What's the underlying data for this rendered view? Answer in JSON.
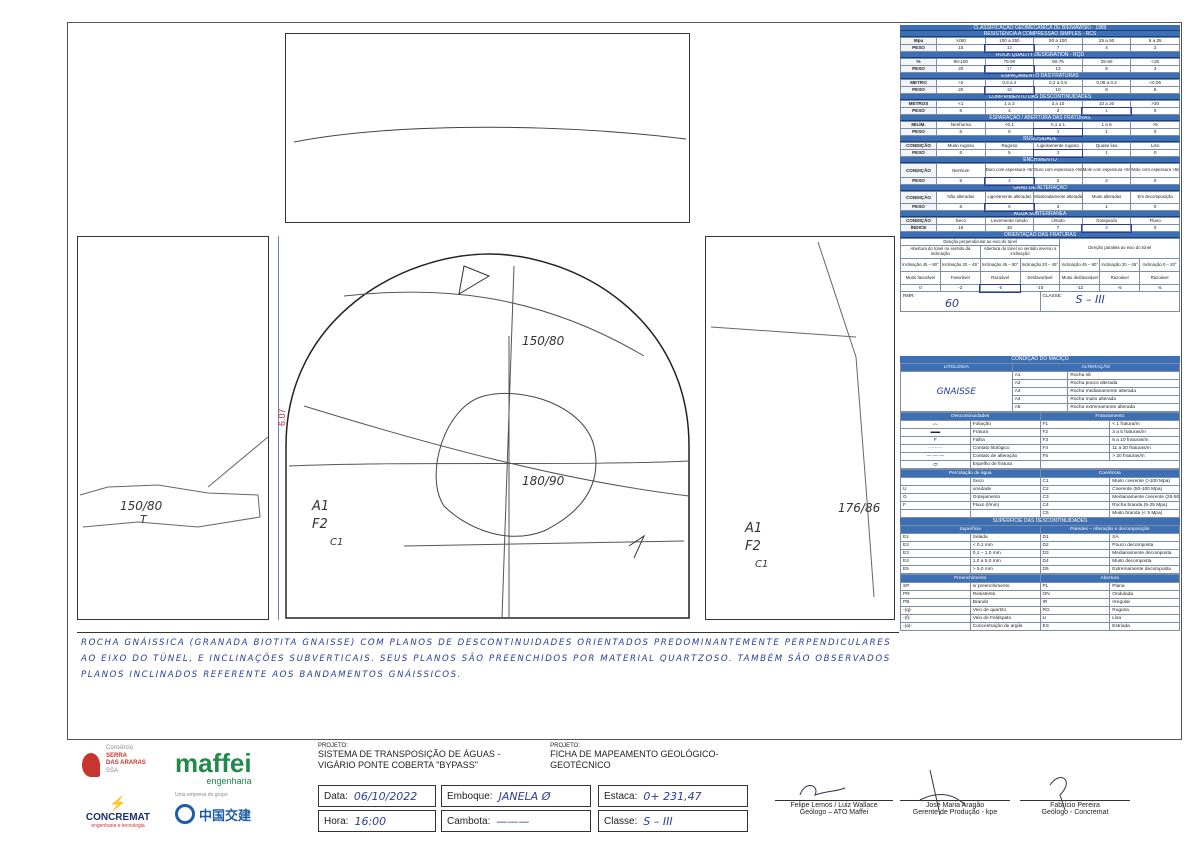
{
  "rmr": {
    "title": "CLASSIFICAÇÃO GEOMECÂNICA DE BIENIAWSKI - 1989",
    "rcs": {
      "header": "RESISTÊNCIA A COMPRESSÃO SIMPLES - RCS",
      "unit": "Mpa",
      "cols": [
        ">250",
        "100 a 250",
        "50 a 100",
        "25 a 50",
        "5 a 25"
      ],
      "peso_label": "PESO",
      "pesos": [
        "15",
        "12",
        "7",
        "4",
        "2"
      ]
    },
    "rqd": {
      "header": "ROCK QUALITY DESIGNATION - RQD",
      "unit": "%",
      "cols": [
        "90-100",
        "75-90",
        "50-75",
        "25-50",
        "<25"
      ],
      "peso_label": "PESO",
      "pesos": [
        "20",
        "17",
        "13",
        "8",
        "3"
      ]
    },
    "esp": {
      "header": "ESPAÇAMENTO DAS FRATURAS",
      "unit": "METRO",
      "cols": [
        ">2",
        "0,6 a 2",
        "0,2 a 0,6",
        "0,06 a 0,2",
        "<0,06"
      ],
      "peso_label": "PESO",
      "pesos": [
        "20",
        "15",
        "10",
        "8",
        "5"
      ]
    },
    "comp": {
      "header": "COMPRIMENTO DAS DESCONTINUIDADES",
      "unit": "METROS",
      "cols": [
        "<1",
        "1 a 3",
        "3 a 10",
        "10 a 20",
        ">20"
      ],
      "peso_label": "PESO",
      "pesos": [
        "6",
        "4",
        "2",
        "1",
        "0"
      ]
    },
    "ab": {
      "header": "ESPARAÇÃO / ABERTURA DAS FRATURAS",
      "unit": "MILÍM.",
      "cols": [
        "Nenhuma",
        "<0,1",
        "0,1 a 1",
        "1 a 5",
        ">5"
      ],
      "peso_label": "PESO",
      "pesos": [
        "6",
        "5",
        "4",
        "1",
        "0"
      ]
    },
    "rug": {
      "header": "RUGOSIDADE",
      "unit": "CONDIÇÃO",
      "cols": [
        "Muito rugoso",
        "Rugoso",
        "Ligeiramente rugoso",
        "Quase liso",
        "Liso"
      ],
      "peso_label": "PESO",
      "pesos": [
        "6",
        "5",
        "3",
        "1",
        "0"
      ]
    },
    "ench": {
      "header": "ENCHIMENTO",
      "unit": "CONDIÇÃO",
      "cols": [
        "Nenhum",
        "Duro com espessura <5mm",
        "Duro com espessura <5mm",
        "Mole com espessura <5mm",
        "Mole com espessura >5mm"
      ],
      "peso_label": "PESO",
      "pesos": [
        "6",
        "4",
        "2",
        "2",
        "0"
      ]
    },
    "alt": {
      "header": "GRAU DE ALTERAÇÃO",
      "unit": "CONDIÇÃO",
      "cols": [
        "Não alteradas",
        "Ligeiramente alteradas",
        "Moderadamente alteradas",
        "Muito alteradas",
        "Em decomposição"
      ],
      "peso_label": "PESO",
      "pesos": [
        "6",
        "5",
        "3",
        "1",
        "0"
      ]
    },
    "agua": {
      "header": "ÁGUA SUBTERRÂNEA",
      "unit": "CONDIÇÃO",
      "cols": [
        "Seco",
        "Levemente úmido",
        "Úmido",
        "Gotejando",
        "Fluxo"
      ],
      "peso_label": "ÍNDICE",
      "pesos": [
        "15",
        "10",
        "7",
        "4",
        "0"
      ]
    },
    "orient": {
      "header": "ORIENTAÇÃO DAS FRATURAS",
      "perp": "Direção perpendicular ao eixo do túnel",
      "par": "Direção paralela ao eixo do túnel",
      "h1": "Abertura do túnel no sentido da inclinação",
      "h2": "Abertura do túnel no sentido inverso a inclinação",
      "incs": [
        "Inclinação 45 – 90°",
        "Inclinação 20 – 45°",
        "Inclinação 45 – 90°",
        "Inclinação 20 – 45°",
        "Inclinação 45 – 90°",
        "Inclinação 20 – 45°",
        "Inclinação 0 – 20°"
      ],
      "cond": [
        "Muito favorável",
        "Favorável",
        "Razoável",
        "Desfavorável",
        "Muito desfavorável",
        "Razoável",
        "Razoável"
      ],
      "vals": [
        "0",
        "-2",
        "-5",
        "-10",
        "-12",
        "-5",
        "-5"
      ]
    },
    "rmr_label": "RMR:",
    "rmr_value": "60",
    "class_label": "CLASSE:",
    "class_value": "S – III"
  },
  "legend": {
    "title": "CONDIÇÃO DO MACIÇO",
    "litologia": "LITOLOGIA",
    "alteracao": "ALTERAÇÃO",
    "lito_value": "GNAISSE",
    "alt_items": [
      [
        "A1",
        "Rocha sã"
      ],
      [
        "A2",
        "Rocha pouco alterada"
      ],
      [
        "A3",
        "Rocha medianamente alterada"
      ],
      [
        "A4",
        "Rocha muito alterada"
      ],
      [
        "A5",
        "Rocha extremamente alterada"
      ]
    ],
    "desc_header": "Descontinuidades",
    "frat_header": "Fraturamento",
    "desc_items": [
      "Foliação",
      "Fratura",
      "Falha",
      "Contato litológico",
      "Contato de alteração",
      "Espelho de fratura"
    ],
    "frat_items": [
      [
        "F1",
        "< 1 fratura/m"
      ],
      [
        "F2",
        "3 a 5 fraturas/m"
      ],
      [
        "F3",
        "6 a 10 fraturas/m"
      ],
      [
        "F4",
        "11 a 20 fraturas/m"
      ],
      [
        "F5",
        "> 20 fraturas/m"
      ]
    ],
    "perc_header": "Percolação de água",
    "coer_header": "Coerência",
    "perc_items": [
      [
        "",
        "Seco"
      ],
      [
        "U",
        "umidade"
      ],
      [
        "G",
        "Gotejamento"
      ],
      [
        "F",
        "Fluxo (l/min)"
      ]
    ],
    "coer_items": [
      [
        "C1",
        "Muito coerente (>100 Mpa)"
      ],
      [
        "C2",
        "Coerente (50-100 Mpa)"
      ],
      [
        "C3",
        "Medianamente coerente (25-50 Mpa)"
      ],
      [
        "C4",
        "Rocha branda (5-25 Mpa)"
      ],
      [
        "C5",
        "Muito branda (< 5 Mpa)"
      ]
    ],
    "sup_title": "SUPERFÍCIE DAS DESCONTINUIDADES",
    "sup_header": "Superfície",
    "par_header": "Paredes – Alteração e decomposição",
    "sup_items": [
      [
        "E1",
        "Selada"
      ],
      [
        "E2",
        "< 0,1 mm"
      ],
      [
        "E3",
        "0,1 – 1,0 mm"
      ],
      [
        "E4",
        "1,0 a 5,0 mm"
      ],
      [
        "E5",
        "> 5,0 mm"
      ]
    ],
    "par_items": [
      [
        "D1",
        "SÃ"
      ],
      [
        "D2",
        "Pouco decomposta"
      ],
      [
        "D3",
        "Medianamente decomposta"
      ],
      [
        "D4",
        "Muito decomposta"
      ],
      [
        "D5",
        "Extremamente decomposta"
      ]
    ],
    "pre_header": "Preenchimento",
    "abe_header": "Abertura",
    "pre_items": [
      [
        "SP",
        "s/ preenchimento"
      ],
      [
        "PR",
        "Resistente"
      ],
      [
        "PB",
        "Brando"
      ],
      [
        "-(q)-",
        "Veio de quartzo"
      ],
      [
        "-(f)-",
        "Veio de Feldspato"
      ],
      [
        "-(a)-",
        "Concentração de argila"
      ]
    ],
    "abe_items": [
      [
        "PL",
        "Plana"
      ],
      [
        "ON",
        "Ondulada"
      ],
      [
        "IR",
        "Irregular"
      ],
      [
        "RG",
        "Rugosa"
      ],
      [
        "LI",
        "Lisa"
      ],
      [
        "ES",
        "Estriada"
      ]
    ]
  },
  "drawing": {
    "dim": "6.07",
    "at1": "150/80",
    "at2": "180/90",
    "at3": "150/80",
    "at4": "176/86",
    "left_notes": [
      "A1",
      "F2",
      "C1"
    ],
    "right_notes": [
      "A1",
      "F2",
      "C1"
    ]
  },
  "notes": "ROCHA GNÁISSICA (GRANADA BIOTITA GNAISSE) COM PLANOS DE DESCONTINUIDADES ORIENTADOS PREDOMINANTEMENTE PERPENDICULARES AO EIXO DO TÚNEL, E INCLINAÇÕES SUBVERTICAIS. SEUS PLANOS SÃO PREENCHIDOS POR MATERIAL QUARTZOSO. TAMBÉM SÃO OBSERVADOS PLANOS INCLINADOS REFERENTE AOS BANDAMENTOS GNÁISSICOS.",
  "footer": {
    "consorcio": "Consórcio",
    "serra1": "SERRA",
    "serra2": "DAS ARARAS",
    "serra3": "SSA",
    "maffei": "maffei",
    "engenharia": "engenharia",
    "concremat": "CONCREMAT",
    "concremat_sub": "engenharia e tecnologia",
    "cccc_pre": "Uma empresa do grupo",
    "cccc": "中国交建",
    "projeto_label": "PROJETO:",
    "projeto": "SISTEMA DE TRANSPOSIÇÃO DE ÁGUAS - VIGÁRIO PONTE COBERTA \"BYPASS\"",
    "projeto2": "FICHA DE MAPEAMENTO GEOLÓGICO-GEOTÉCNICO",
    "data_label": "Data:",
    "data": "06/10/2022",
    "emboque_label": "Emboque:",
    "emboque": "JANELA Ø",
    "estaca_label": "Estaca:",
    "estaca": "0+ 231,47",
    "hora_label": "Hora:",
    "hora": "16:00",
    "cambota_label": "Cambota:",
    "cambota": "———",
    "classe_label": "Classe:",
    "classe": "S – III",
    "sig1a": "Felipe Lemos / Luiz Wallace",
    "sig1b": "Geólogo – ATO Maffei",
    "sig2a": "José Maria Aragão",
    "sig2b": "Gerente de Produção - kpe",
    "sig3a": "Fabrício Pereira",
    "sig3b": "Geólogo - Concremat"
  }
}
